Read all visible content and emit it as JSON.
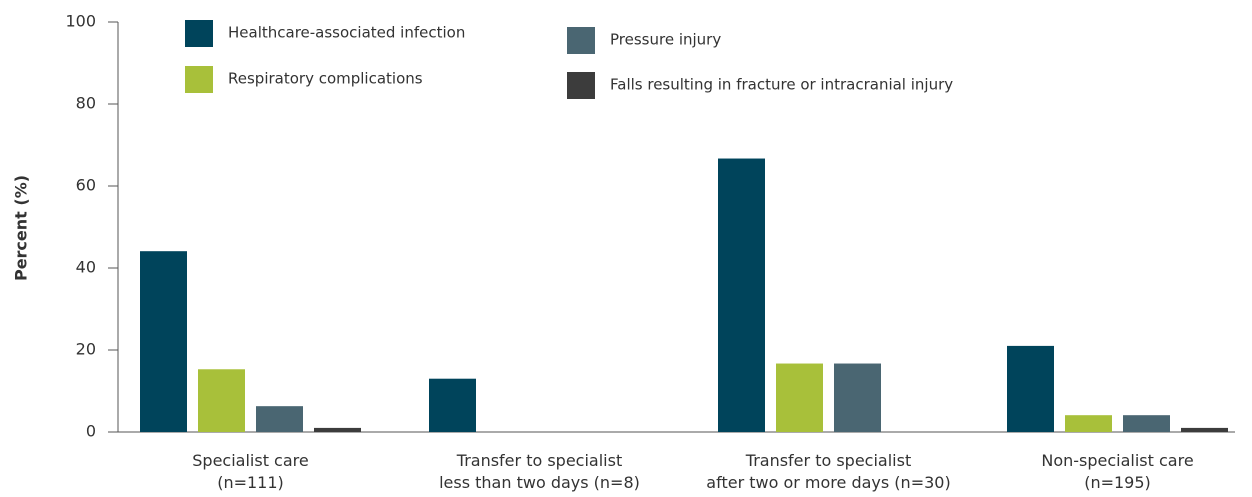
{
  "chart_data": {
    "type": "bar",
    "ylabel": "Percent (%)",
    "categories": [
      "Specialist care\n(n=111)",
      "Transfer to specialist\nless than two days (n=8)",
      "Transfer to specialist\nafter two or more days (n=30)",
      "Non-specialist care\n(n=195)"
    ],
    "series": [
      {
        "name": "Healthcare-associated infection",
        "color": "#00445b",
        "values": [
          44.1,
          13,
          66.7,
          21
        ]
      },
      {
        "name": "Respiratory complications",
        "color": "#a8c03a",
        "values": [
          15.3,
          0,
          16.7,
          4.1
        ]
      },
      {
        "name": "Pressure injury",
        "color": "#4a6672",
        "values": [
          6.3,
          0,
          16.7,
          4.1
        ]
      },
      {
        "name": "Falls resulting in fracture or intracranial injury",
        "color": "#3c3c3c",
        "values": [
          1,
          0,
          0,
          1
        ]
      }
    ],
    "ylim": [
      0,
      100
    ],
    "yticks": [
      0,
      20,
      40,
      60,
      80,
      100
    ],
    "legend": "top"
  }
}
